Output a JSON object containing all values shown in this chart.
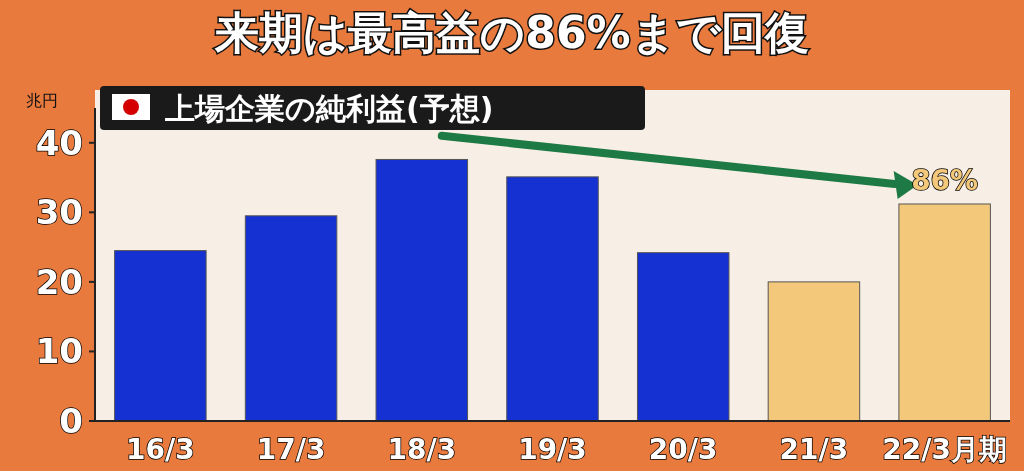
{
  "chart_data": {
    "type": "bar",
    "title": "来期は最高益の86%まで回復",
    "subtitle": "上場企業の純利益(予想)",
    "ylabel": "兆円",
    "categories": [
      "16/3",
      "17/3",
      "18/3",
      "19/3",
      "20/3",
      "21/3",
      "22/3月期"
    ],
    "values": [
      24.5,
      29.5,
      37.6,
      35.1,
      24.2,
      20.0,
      31.2
    ],
    "colors": [
      "#1531d2",
      "#1531d2",
      "#1531d2",
      "#1531d2",
      "#1531d2",
      "#f3c87a",
      "#f3c87a"
    ],
    "ylim": [
      0,
      45
    ],
    "yticks": [
      0,
      10,
      20,
      30,
      40
    ],
    "grid": false,
    "annotations": [
      {
        "text": "86%",
        "x": "22/3月期",
        "y": 31.2
      }
    ]
  }
}
